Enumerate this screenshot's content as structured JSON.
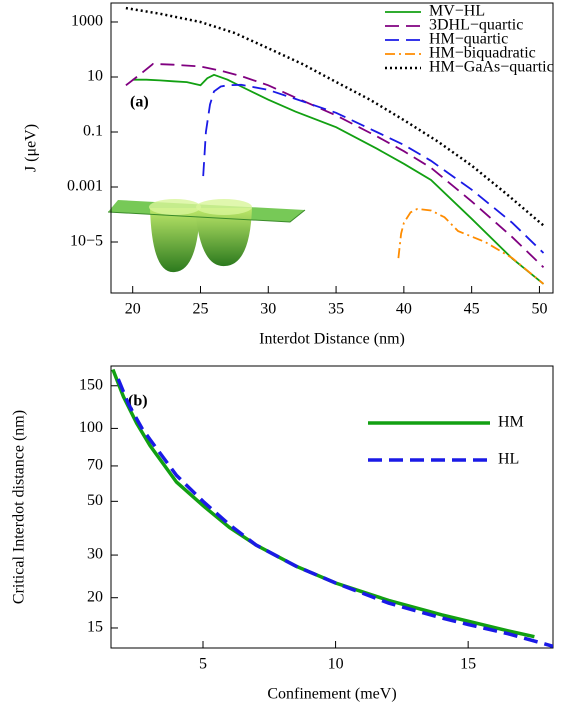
{
  "chart_data": [
    {
      "type": "line",
      "annotation": "(a)",
      "xlabel": "Interdot Distance (nm)",
      "ylabel": "J (μeV)",
      "xlim": [
        18.4,
        51
      ],
      "xticks": [
        20,
        25,
        30,
        35,
        40,
        45,
        50
      ],
      "ylim": [
        1.4e-07,
        4900
      ],
      "ylog": true,
      "yticks": [
        1000,
        10,
        0.1,
        0.001,
        {
          "value": 1e-05,
          "label": "10−5"
        }
      ],
      "legend": "upper right",
      "grid": false,
      "series": [
        {
          "name": "MV−HL",
          "color": "#12a012",
          "linestyle": "solid",
          "x": [
            20,
            21,
            22,
            23,
            24,
            25,
            25.5,
            26,
            27,
            28,
            30,
            32,
            35,
            38,
            40,
            42,
            45,
            48,
            50.3
          ],
          "values": [
            8,
            8,
            7.5,
            7,
            6.5,
            5,
            9,
            12,
            8,
            4.5,
            1.5,
            0.55,
            0.15,
            0.025,
            0.007,
            0.0018,
            7e-05,
            2.5e-06,
            3e-07
          ]
        },
        {
          "name": "3DHL−quartic",
          "color": "#800080",
          "linestyle": "dashed",
          "x": [
            19.5,
            20.5,
            21.5,
            23,
            25,
            26.5,
            28,
            30,
            32,
            35,
            38,
            40,
            42,
            45,
            48,
            50.3
          ],
          "values": [
            5,
            12,
            30,
            28,
            24,
            17,
            10.8,
            5,
            1.8,
            0.4,
            0.07,
            0.02,
            0.005,
            0.0003,
            1.5e-05,
            1.2e-06
          ]
        },
        {
          "name": "HM−quartic",
          "color": "#1a1ae6",
          "linestyle": "dashed",
          "x": [
            25.2,
            25.4,
            25.7,
            26,
            26.5,
            27,
            28,
            30,
            32,
            35,
            38,
            40,
            42,
            45,
            48,
            50.3
          ],
          "values": [
            0.0025,
            0.1,
            1,
            3,
            4.5,
            5,
            5.2,
            3.4,
            1.6,
            0.5,
            0.1,
            0.034,
            0.009,
            0.0008,
            5e-05,
            4e-06
          ]
        },
        {
          "name": "HM−biquadratic",
          "color": "#ff8c00",
          "linestyle": "dashdot",
          "x": [
            39.6,
            39.8,
            40,
            40.5,
            41,
            42,
            43,
            44,
            46,
            48,
            50.3
          ],
          "values": [
            2.6e-06,
            2e-05,
            5e-05,
            0.00012,
            0.00016,
            0.00014,
            8e-05,
            2.5e-05,
            1e-05,
            2.6e-06,
            3e-07
          ]
        },
        {
          "name": "HM−GaAs−quartic",
          "color": "#000000",
          "linestyle": "dotted",
          "x": [
            19.5,
            22,
            25,
            27.5,
            30,
            32.5,
            35,
            37.5,
            40,
            42.5,
            45,
            47.5,
            50.3
          ],
          "values": [
            3200,
            2000,
            1000,
            400,
            110,
            30,
            6.6,
            1.5,
            0.27,
            0.045,
            0.006,
            0.0006,
            4e-05
          ]
        }
      ]
    },
    {
      "type": "line",
      "annotation": "(b)",
      "xlabel": "Confinement (meV)",
      "ylabel": "Critical Interdot distance (nm)",
      "xlim": [
        1.53,
        18.2
      ],
      "xticks": [
        5,
        10,
        15
      ],
      "ylim": [
        12.4,
        181
      ],
      "ylog": true,
      "yticks": [
        15,
        20,
        30,
        50,
        70,
        100,
        150
      ],
      "legend": "center right",
      "grid": false,
      "series": [
        {
          "name": "HM",
          "color": "#12a012",
          "linestyle": "solid",
          "x": [
            1.6,
            2,
            2.5,
            3,
            4,
            5,
            6,
            7,
            8.5,
            10,
            12,
            14,
            15,
            16.5,
            17.5
          ],
          "values": [
            175,
            135,
            105,
            85,
            60,
            48,
            39,
            33,
            27,
            23,
            19.5,
            17,
            16,
            14.6,
            13.8
          ]
        },
        {
          "name": "HL",
          "color": "#1a1ae6",
          "linestyle": "dashed",
          "x": [
            1.8,
            2.2,
            2.7,
            3,
            4,
            5,
            6,
            7,
            8.5,
            10,
            12,
            14,
            15,
            16.5,
            18.2
          ],
          "values": [
            160,
            125,
            100,
            90,
            64,
            50,
            40,
            33,
            27,
            23,
            19,
            16.5,
            15.5,
            14.2,
            12.6
          ]
        }
      ]
    }
  ]
}
